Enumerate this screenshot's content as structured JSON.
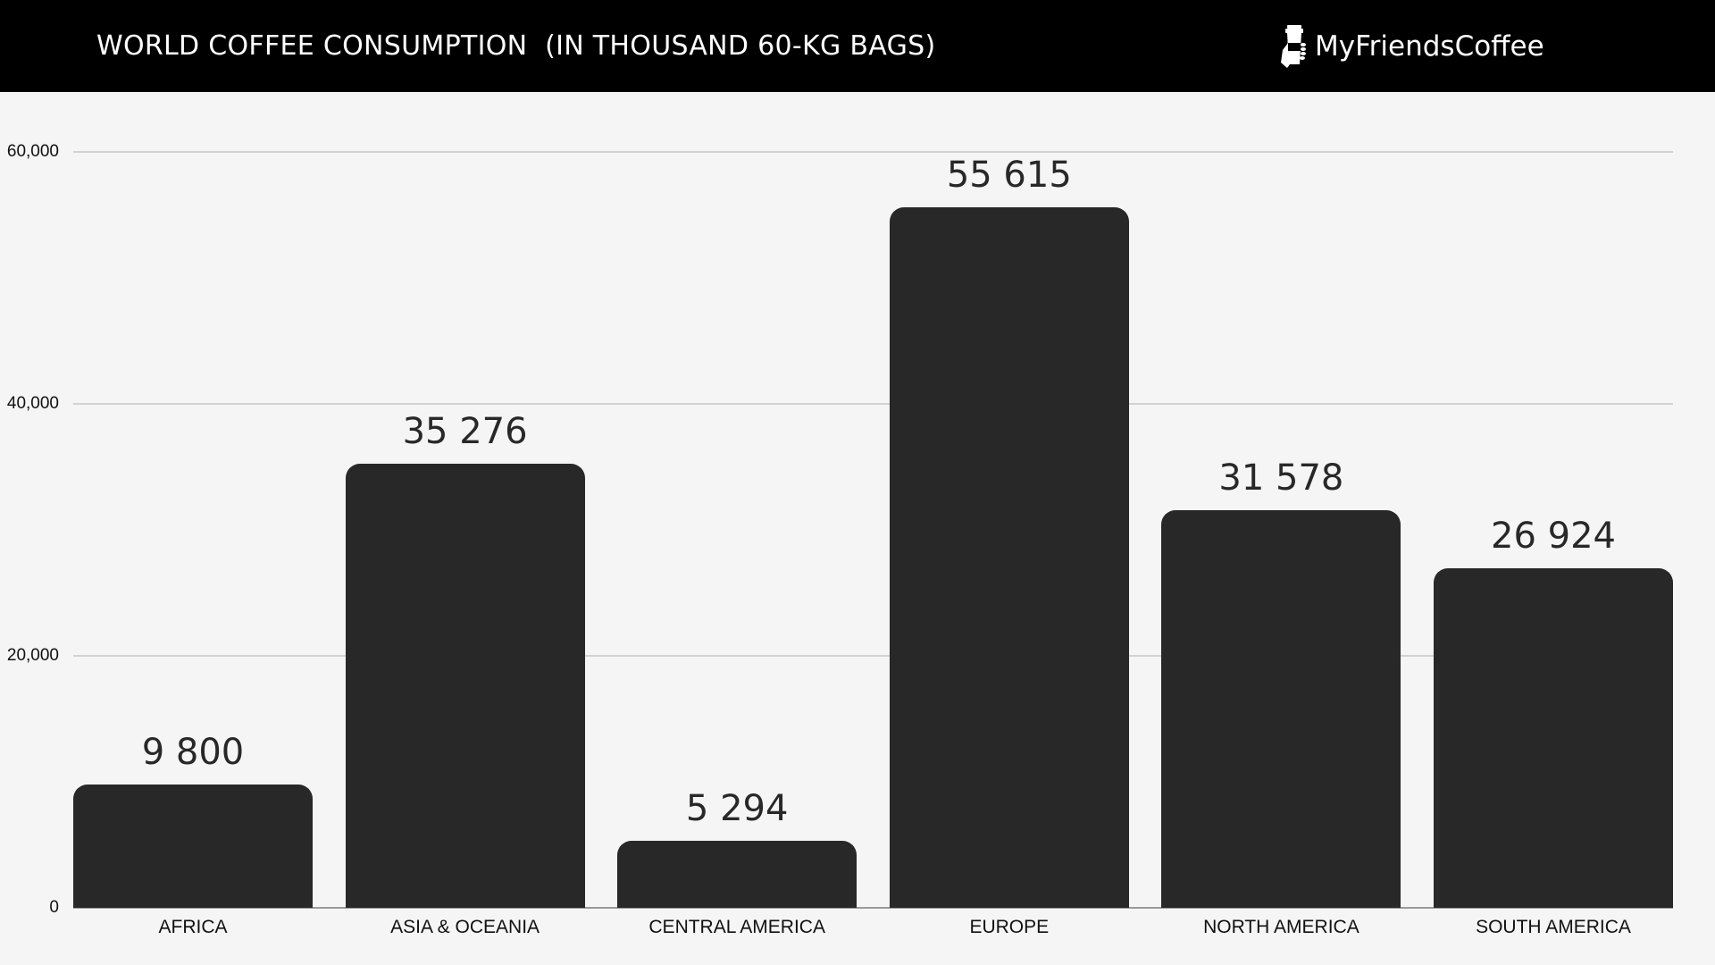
{
  "header": {
    "title": "WORLD COFFEE CONSUMPTION  (IN THOUSAND 60-KG BAGS)",
    "brand": "MyFriendsCoffee",
    "brand_icon": "coffee-cup-in-hand-icon",
    "background": "#000000",
    "text_color": "#ffffff"
  },
  "chart_data": {
    "type": "bar",
    "title": "WORLD COFFEE CONSUMPTION  (IN THOUSAND 60-KG BAGS)",
    "xlabel": "",
    "ylabel": "",
    "categories": [
      "AFRICA",
      "ASIA & OCEANIA",
      "CENTRAL AMERICA",
      "EUROPE",
      "NORTH AMERICA",
      "SOUTH AMERICA"
    ],
    "values": [
      9800,
      35276,
      5294,
      55615,
      31578,
      26924
    ],
    "value_labels": [
      "9 800",
      "35 276",
      "5 294",
      "55 615",
      "31 578",
      "26 924"
    ],
    "ylim": [
      0,
      60000
    ],
    "yticks": [
      0,
      20000,
      40000,
      60000
    ],
    "ytick_labels": [
      "0",
      "20,000",
      "40,000",
      "60,000"
    ],
    "grid": true,
    "legend": null,
    "bar_color": "#282828",
    "background": "#f5f5f5"
  }
}
